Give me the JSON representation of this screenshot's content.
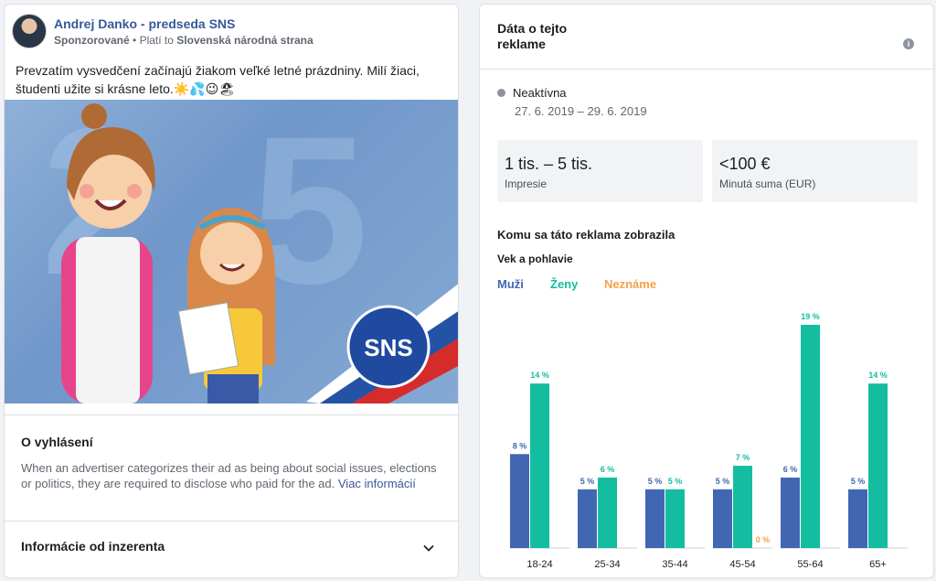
{
  "ad": {
    "page_name": "Andrej Danko - predseda SNS",
    "sponsored_label": "Sponzorované",
    "paid_by_prefix": "Platí to",
    "paid_by": "Slovenská národná strana",
    "text": "Prevzatím vysvedčení začínajú žiakom veľké letné prázdniny. Milí žiaci, študenti užite si krásne leto.☀️💦😉🏖"
  },
  "about": {
    "title": "O vyhlásení",
    "text": "When an advertiser categorizes their ad as being about social issues, elections or politics, they are required to disclose who paid for the ad.",
    "link": "Viac informácií"
  },
  "advertiser": {
    "title": "Informácie od inzerenta"
  },
  "data_panel": {
    "title": "Dáta o tejto reklame",
    "status": "Neaktívna",
    "dates": "27. 6. 2019 – 29. 6. 2019",
    "impressions_value": "1 tis. – 5 tis.",
    "impressions_label": "Impresie",
    "spent_value": "<100 €",
    "spent_label": "Minutá suma (EUR)",
    "audience_title": "Komu sa táto reklama zobrazila",
    "age_gender_title": "Vek a pohlavie"
  },
  "colors": {
    "men": "#4267b2",
    "women": "#14bda0",
    "unknown": "#f5a04a"
  },
  "chart_data": {
    "type": "bar",
    "categories": [
      "18-24",
      "25-34",
      "35-44",
      "45-54",
      "55-64",
      "65+"
    ],
    "series": [
      {
        "name": "Muži",
        "values": [
          8,
          5,
          5,
          5,
          6,
          5
        ]
      },
      {
        "name": "Ženy",
        "values": [
          14,
          6,
          5,
          7,
          19,
          14
        ]
      },
      {
        "name": "Neznáme",
        "values": [
          null,
          null,
          null,
          0,
          null,
          null
        ]
      }
    ],
    "unit": "%",
    "ylim": [
      0,
      19
    ]
  }
}
